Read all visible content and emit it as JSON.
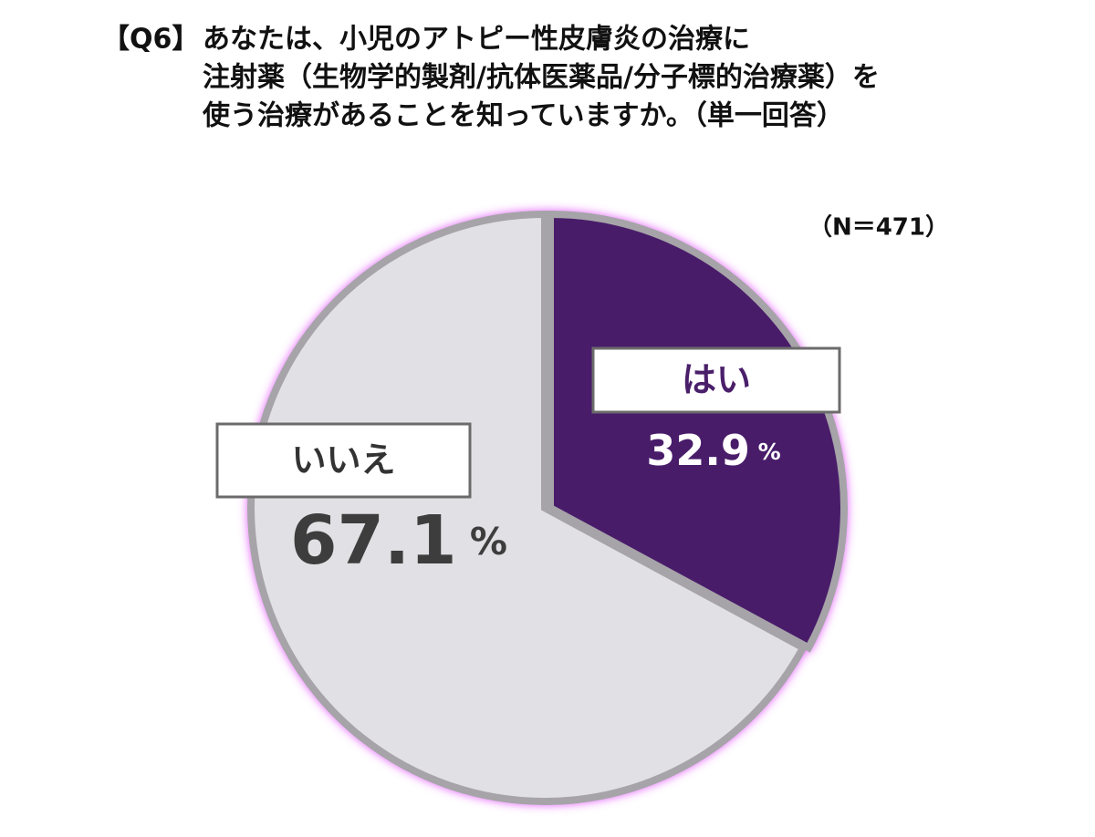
{
  "chart_data": {
    "type": "pie",
    "question_label": "【Q6】",
    "title_lines": [
      "あなたは、小児のアトピー性皮膚炎の治療に",
      "注射薬（生物学的製剤/抗体医薬品/分子標的治療薬）を",
      "使う治療があることを知っていますか。（単一回答）"
    ],
    "subtitle": "（N＝471）",
    "categories": [
      "はい",
      "いいえ"
    ],
    "values": [
      32.9,
      67.1
    ],
    "value_labels": [
      "32.9 %",
      "67.1 %"
    ],
    "colors": [
      "#4a1f6a",
      "#e1e0e4"
    ]
  }
}
